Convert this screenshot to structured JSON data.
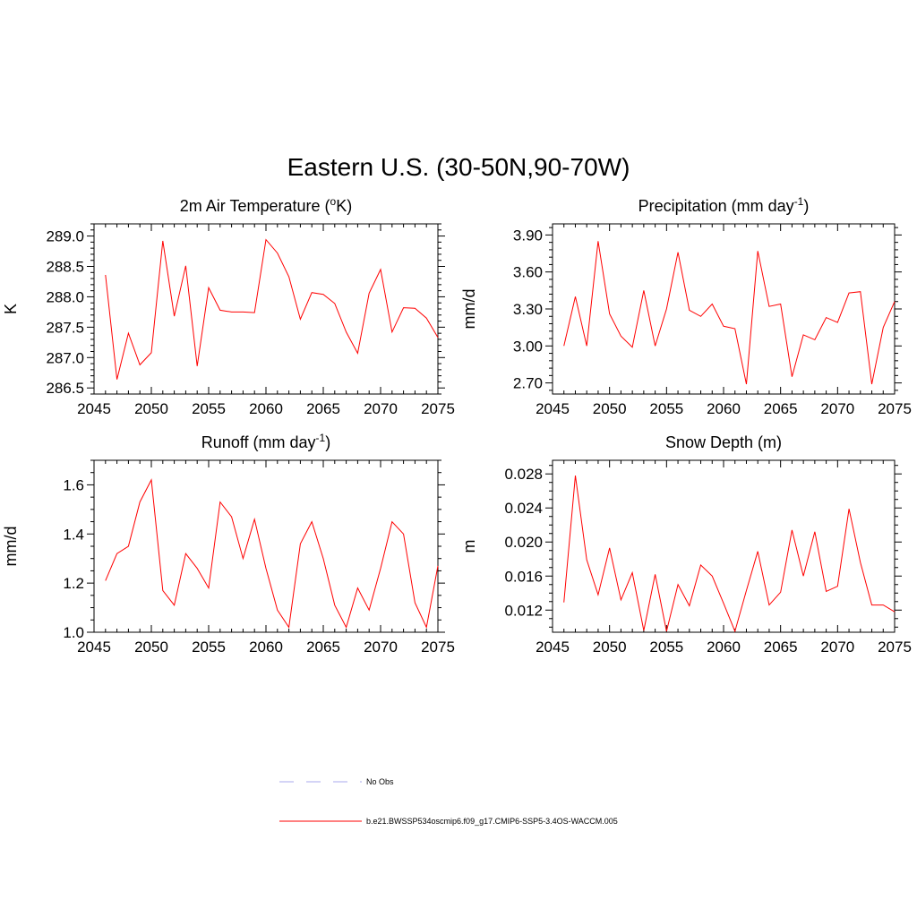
{
  "title": "Eastern U.S. (30-50N,90-70W)",
  "colors": {
    "model": "#ff0000",
    "obs": "#aaaaee"
  },
  "legend": {
    "obs_label": "No Obs",
    "model_label": "b.e21.BWSSP534oscmip6.f09_g17.CMIP6-SSP5-3.4OS-WACCM.005"
  },
  "chart_data": [
    {
      "type": "line",
      "title": "2m Air Temperature",
      "title_unit_pre": "(",
      "title_unit_sup": "o",
      "title_unit_post": "K)",
      "xlabel": "",
      "ylabel": "K",
      "xlim": [
        2045,
        2075
      ],
      "ylim": [
        286.4,
        289.2
      ],
      "xticks": [
        2045,
        2050,
        2055,
        2060,
        2065,
        2070,
        2075
      ],
      "xtick_labels": [
        "2045",
        "2050",
        "2055",
        "2060",
        "2065",
        "2070",
        "2075"
      ],
      "yticks": [
        286.5,
        287.0,
        287.5,
        288.0,
        288.5,
        289.0
      ],
      "ytick_labels": [
        "286.5",
        "287.0",
        "287.5",
        "288.0",
        "288.5",
        "289.0"
      ],
      "yminor_step": 0.1,
      "series": [
        {
          "name": "b.e21.BWSSP534oscmip6.f09_g17.CMIP6-SSP5-3.4OS-WACCM.005",
          "x": [
            2046,
            2047,
            2048,
            2049,
            2050,
            2051,
            2052,
            2053,
            2054,
            2055,
            2056,
            2057,
            2058,
            2059,
            2060,
            2061,
            2062,
            2063,
            2064,
            2065,
            2066,
            2067,
            2068,
            2069,
            2070,
            2071,
            2072,
            2073,
            2074,
            2075
          ],
          "values": [
            288.36,
            286.64,
            287.4,
            286.88,
            287.08,
            288.92,
            287.68,
            288.51,
            286.86,
            288.15,
            287.78,
            287.75,
            287.75,
            287.74,
            288.94,
            288.72,
            288.33,
            287.63,
            288.07,
            288.04,
            287.89,
            287.42,
            287.07,
            288.06,
            288.45,
            287.42,
            287.82,
            287.81,
            287.65,
            287.33
          ]
        }
      ]
    },
    {
      "type": "line",
      "title": "Precipitation (mm day",
      "title_unit_pre": "",
      "title_unit_sup": "-1",
      "title_unit_post": ")",
      "xlabel": "",
      "ylabel": "mm/d",
      "xlim": [
        2045,
        2075
      ],
      "ylim": [
        2.61,
        3.99
      ],
      "xticks": [
        2045,
        2050,
        2055,
        2060,
        2065,
        2070,
        2075
      ],
      "xtick_labels": [
        "2045",
        "2050",
        "2055",
        "2060",
        "2065",
        "2070",
        "2075"
      ],
      "yticks": [
        2.7,
        3.0,
        3.3,
        3.6,
        3.9
      ],
      "ytick_labels": [
        "2.70",
        "3.00",
        "3.30",
        "3.60",
        "3.90"
      ],
      "yminor_step": 0.06,
      "series": [
        {
          "name": "b.e21.BWSSP534oscmip6.f09_g17.CMIP6-SSP5-3.4OS-WACCM.005",
          "x": [
            2046,
            2047,
            2048,
            2049,
            2050,
            2051,
            2052,
            2053,
            2054,
            2055,
            2056,
            2057,
            2058,
            2059,
            2060,
            2061,
            2062,
            2063,
            2064,
            2065,
            2066,
            2067,
            2068,
            2069,
            2070,
            2071,
            2072,
            2073,
            2074,
            2075
          ],
          "values": [
            3.0,
            3.4,
            3.0,
            3.85,
            3.26,
            3.08,
            2.99,
            3.45,
            3.0,
            3.3,
            3.76,
            3.29,
            3.24,
            3.34,
            3.16,
            3.14,
            2.69,
            3.77,
            3.32,
            3.34,
            2.75,
            3.09,
            3.05,
            3.23,
            3.19,
            3.43,
            3.44,
            2.69,
            3.15,
            3.36
          ]
        }
      ]
    },
    {
      "type": "line",
      "title": "Runoff (mm day",
      "title_unit_pre": "",
      "title_unit_sup": "-1",
      "title_unit_post": ")",
      "xlabel": "",
      "ylabel": "mm/d",
      "xlim": [
        2045,
        2075
      ],
      "ylim": [
        1.0,
        1.7
      ],
      "xticks": [
        2045,
        2050,
        2055,
        2060,
        2065,
        2070,
        2075
      ],
      "xtick_labels": [
        "2045",
        "2050",
        "2055",
        "2060",
        "2065",
        "2070",
        "2075"
      ],
      "yticks": [
        1.0,
        1.2,
        1.4,
        1.6
      ],
      "ytick_labels": [
        "1.0",
        "1.2",
        "1.4",
        "1.6"
      ],
      "yminor_step": 0.05,
      "series": [
        {
          "name": "b.e21.BWSSP534oscmip6.f09_g17.CMIP6-SSP5-3.4OS-WACCM.005",
          "x": [
            2046,
            2047,
            2048,
            2049,
            2050,
            2051,
            2052,
            2053,
            2054,
            2055,
            2056,
            2057,
            2058,
            2059,
            2060,
            2061,
            2062,
            2063,
            2064,
            2065,
            2066,
            2067,
            2068,
            2069,
            2070,
            2071,
            2072,
            2073,
            2074,
            2075
          ],
          "values": [
            1.21,
            1.32,
            1.35,
            1.53,
            1.62,
            1.17,
            1.11,
            1.32,
            1.26,
            1.18,
            1.53,
            1.47,
            1.3,
            1.46,
            1.26,
            1.09,
            1.02,
            1.36,
            1.45,
            1.3,
            1.11,
            1.02,
            1.18,
            1.09,
            1.26,
            1.45,
            1.4,
            1.12,
            1.02,
            1.27
          ]
        }
      ]
    },
    {
      "type": "line",
      "title": "Snow Depth (m)",
      "title_unit_pre": "",
      "title_unit_sup": "",
      "title_unit_post": "",
      "xlabel": "",
      "ylabel": "m",
      "xlim": [
        2045,
        2075
      ],
      "ylim": [
        0.0094,
        0.0296
      ],
      "xticks": [
        2045,
        2050,
        2055,
        2060,
        2065,
        2070,
        2075
      ],
      "xtick_labels": [
        "2045",
        "2050",
        "2055",
        "2060",
        "2065",
        "2070",
        "2075"
      ],
      "yticks": [
        0.012,
        0.016,
        0.02,
        0.024,
        0.028
      ],
      "ytick_labels": [
        "0.012",
        "0.016",
        "0.020",
        "0.024",
        "0.028"
      ],
      "yminor_step": 0.001,
      "series": [
        {
          "name": "b.e21.BWSSP534oscmip6.f09_g17.CMIP6-SSP5-3.4OS-WACCM.005",
          "x": [
            2046,
            2047,
            2048,
            2049,
            2050,
            2051,
            2052,
            2053,
            2054,
            2055,
            2056,
            2057,
            2058,
            2059,
            2060,
            2061,
            2062,
            2063,
            2064,
            2065,
            2066,
            2067,
            2068,
            2069,
            2070,
            2071,
            2072,
            2073,
            2074,
            2075
          ],
          "values": [
            0.0129,
            0.0278,
            0.0179,
            0.0138,
            0.0193,
            0.0132,
            0.0164,
            0.0096,
            0.0162,
            0.0095,
            0.015,
            0.0125,
            0.0173,
            0.016,
            0.0128,
            0.0095,
            0.0143,
            0.0189,
            0.0126,
            0.0141,
            0.0214,
            0.016,
            0.0212,
            0.0142,
            0.0148,
            0.0239,
            0.0176,
            0.0126,
            0.0126,
            0.0118
          ]
        }
      ]
    }
  ]
}
